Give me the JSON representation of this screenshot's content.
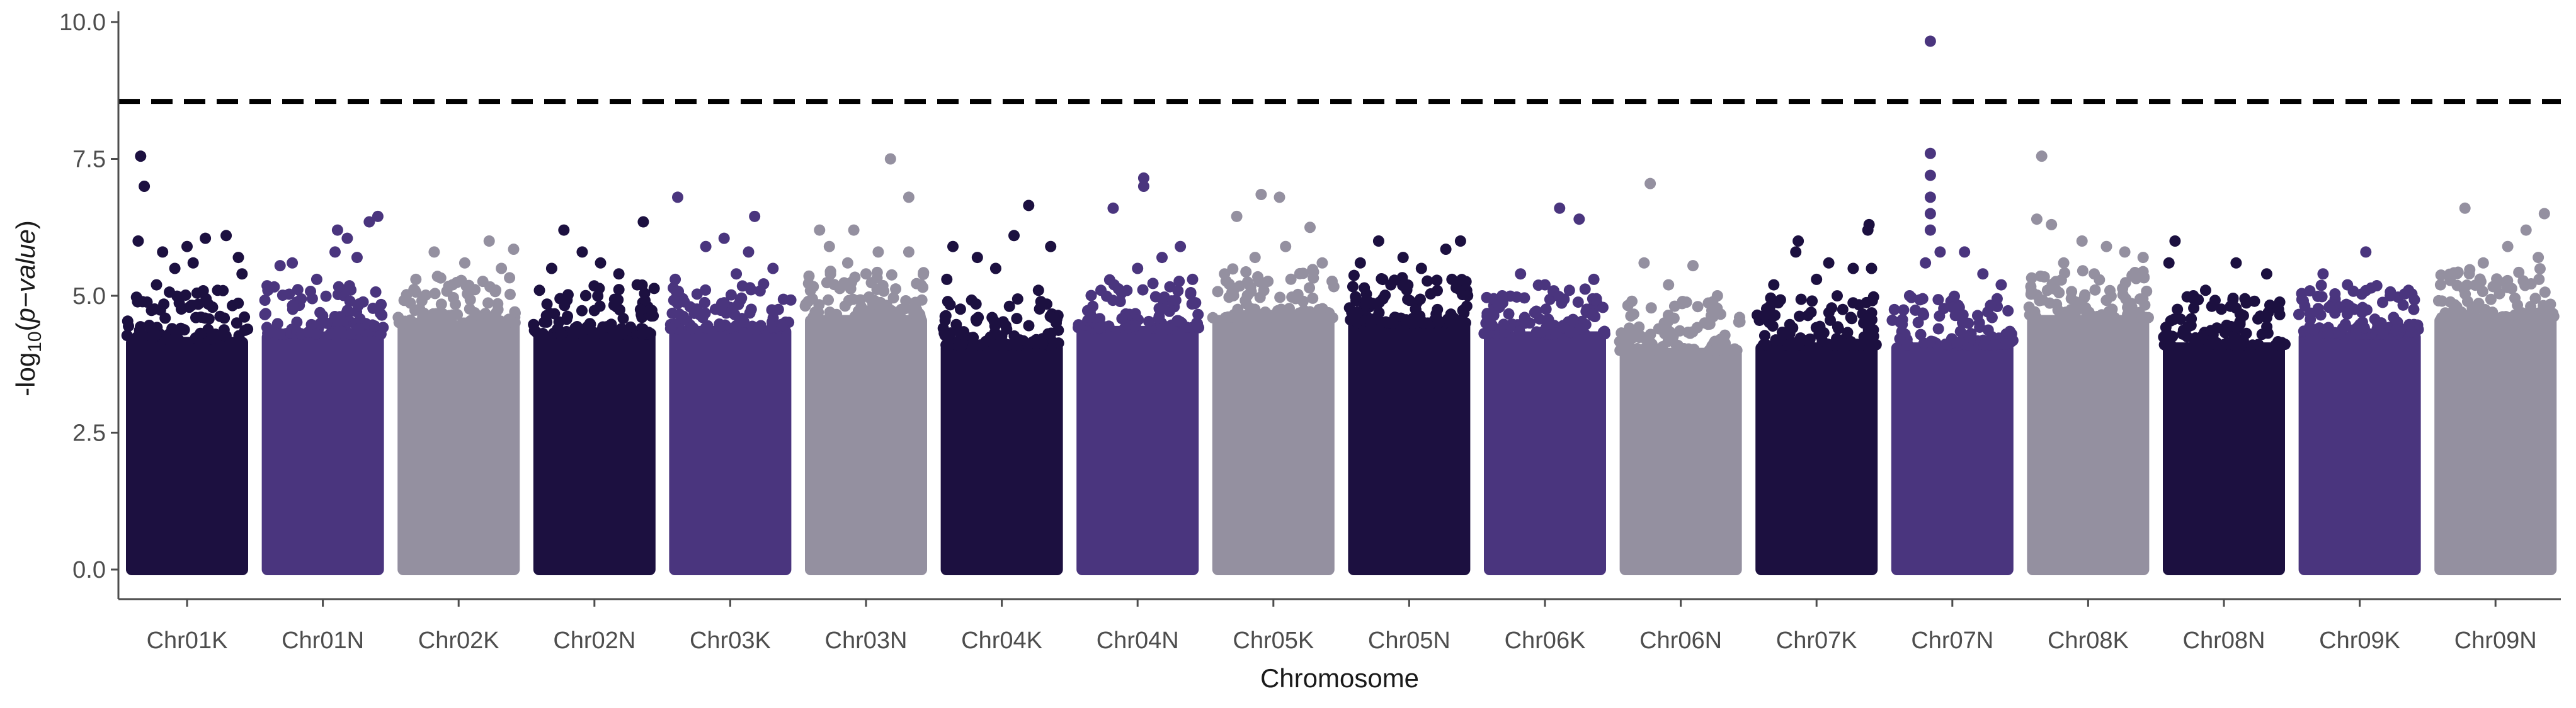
{
  "chart_data": {
    "type": "scatter",
    "subtype": "manhattan",
    "xlabel": "Chromosome",
    "ylabel": "-log10(p-value)",
    "ylabel_parts": {
      "prefix": "-log",
      "sub": "10",
      "open": "(",
      "italic": "p−value",
      "close": ")"
    },
    "ylim": [
      0,
      10
    ],
    "yticks": [
      "0.0",
      "2.5",
      "5.0",
      "7.5",
      "10.0"
    ],
    "ytick_values": [
      0,
      2.5,
      5.0,
      7.5,
      10.0
    ],
    "threshold": 8.55,
    "threshold_style": "dashed",
    "grid": false,
    "palette": [
      "#1c1040",
      "#4a357e",
      "#9490a0"
    ],
    "categories": [
      "Chr01K",
      "Chr01N",
      "Chr02K",
      "Chr02N",
      "Chr03K",
      "Chr03N",
      "Chr04K",
      "Chr04N",
      "Chr05K",
      "Chr05N",
      "Chr06K",
      "Chr06N",
      "Chr07K",
      "Chr07N",
      "Chr08K",
      "Chr08N",
      "Chr09K",
      "Chr09N"
    ],
    "series": [
      {
        "chromosome": "Chr01K",
        "color": "#1c1040",
        "band_top": 4.5,
        "top_points": [
          [
            0.12,
            7.55
          ],
          [
            0.15,
            7.0
          ],
          [
            0.1,
            6.0
          ],
          [
            0.3,
            5.8
          ],
          [
            0.5,
            5.9
          ],
          [
            0.65,
            6.05
          ],
          [
            0.82,
            6.1
          ],
          [
            0.55,
            5.6
          ],
          [
            0.4,
            5.5
          ],
          [
            0.92,
            5.7
          ],
          [
            0.25,
            5.2
          ],
          [
            0.75,
            5.1
          ],
          [
            0.95,
            5.4
          ]
        ]
      },
      {
        "chromosome": "Chr01N",
        "color": "#4a357e",
        "band_top": 4.6,
        "top_points": [
          [
            0.95,
            6.45
          ],
          [
            0.88,
            6.35
          ],
          [
            0.62,
            6.2
          ],
          [
            0.7,
            6.05
          ],
          [
            0.6,
            5.8
          ],
          [
            0.78,
            5.7
          ],
          [
            0.25,
            5.6
          ],
          [
            0.45,
            5.3
          ],
          [
            0.15,
            5.55
          ],
          [
            0.05,
            5.1
          ]
        ]
      },
      {
        "chromosome": "Chr02K",
        "color": "#9490a0",
        "band_top": 4.8,
        "top_points": [
          [
            0.75,
            6.0
          ],
          [
            0.95,
            5.85
          ],
          [
            0.3,
            5.8
          ],
          [
            0.55,
            5.6
          ],
          [
            0.85,
            5.5
          ],
          [
            0.15,
            5.3
          ],
          [
            0.45,
            5.2
          ]
        ]
      },
      {
        "chromosome": "Chr02N",
        "color": "#1c1040",
        "band_top": 4.6,
        "top_points": [
          [
            0.25,
            6.2
          ],
          [
            0.9,
            6.35
          ],
          [
            0.4,
            5.8
          ],
          [
            0.55,
            5.6
          ],
          [
            0.15,
            5.5
          ],
          [
            0.7,
            5.4
          ],
          [
            0.85,
            5.2
          ],
          [
            0.05,
            5.1
          ]
        ]
      },
      {
        "chromosome": "Chr03K",
        "color": "#4a357e",
        "band_top": 4.7,
        "top_points": [
          [
            0.07,
            6.8
          ],
          [
            0.7,
            6.45
          ],
          [
            0.45,
            6.05
          ],
          [
            0.65,
            5.8
          ],
          [
            0.3,
            5.9
          ],
          [
            0.85,
            5.5
          ],
          [
            0.05,
            5.3
          ],
          [
            0.55,
            5.4
          ]
        ]
      },
      {
        "chromosome": "Chr03N",
        "color": "#9490a0",
        "band_top": 4.9,
        "top_points": [
          [
            0.7,
            7.5
          ],
          [
            0.85,
            6.8
          ],
          [
            0.12,
            6.2
          ],
          [
            0.4,
            6.2
          ],
          [
            0.2,
            5.9
          ],
          [
            0.6,
            5.8
          ],
          [
            0.85,
            5.8
          ],
          [
            0.35,
            5.6
          ],
          [
            0.5,
            5.4
          ],
          [
            0.95,
            5.2
          ]
        ]
      },
      {
        "chromosome": "Chr04K",
        "color": "#1c1040",
        "band_top": 4.4,
        "top_points": [
          [
            0.72,
            6.65
          ],
          [
            0.9,
            5.9
          ],
          [
            0.6,
            6.1
          ],
          [
            0.1,
            5.9
          ],
          [
            0.3,
            5.7
          ],
          [
            0.45,
            5.5
          ],
          [
            0.05,
            5.3
          ],
          [
            0.8,
            5.1
          ]
        ]
      },
      {
        "chromosome": "Chr04N",
        "color": "#4a357e",
        "band_top": 4.7,
        "top_points": [
          [
            0.55,
            7.15
          ],
          [
            0.55,
            7.0
          ],
          [
            0.3,
            6.6
          ],
          [
            0.85,
            5.9
          ],
          [
            0.7,
            5.7
          ],
          [
            0.5,
            5.5
          ],
          [
            0.95,
            5.3
          ],
          [
            0.2,
            5.1
          ]
        ]
      },
      {
        "chromosome": "Chr05K",
        "color": "#9490a0",
        "band_top": 4.9,
        "top_points": [
          [
            0.4,
            6.85
          ],
          [
            0.55,
            6.8
          ],
          [
            0.2,
            6.45
          ],
          [
            0.8,
            6.25
          ],
          [
            0.6,
            5.9
          ],
          [
            0.35,
            5.7
          ],
          [
            0.9,
            5.6
          ],
          [
            0.1,
            5.4
          ]
        ]
      },
      {
        "chromosome": "Chr05N",
        "color": "#1c1040",
        "band_top": 4.8,
        "top_points": [
          [
            0.25,
            6.0
          ],
          [
            0.92,
            6.0
          ],
          [
            0.8,
            5.85
          ],
          [
            0.45,
            5.7
          ],
          [
            0.6,
            5.5
          ],
          [
            0.1,
            5.6
          ],
          [
            0.85,
            5.3
          ],
          [
            0.35,
            5.2
          ]
        ]
      },
      {
        "chromosome": "Chr06K",
        "color": "#4a357e",
        "band_top": 4.6,
        "top_points": [
          [
            0.62,
            6.6
          ],
          [
            0.78,
            6.4
          ],
          [
            0.3,
            5.4
          ],
          [
            0.5,
            5.2
          ],
          [
            0.9,
            5.3
          ],
          [
            0.15,
            5.0
          ],
          [
            0.7,
            5.1
          ]
        ]
      },
      {
        "chromosome": "Chr06N",
        "color": "#9490a0",
        "band_top": 4.3,
        "top_points": [
          [
            0.25,
            7.05
          ],
          [
            0.2,
            5.6
          ],
          [
            0.6,
            5.55
          ],
          [
            0.4,
            5.2
          ],
          [
            0.8,
            5.0
          ],
          [
            0.1,
            4.9
          ]
        ]
      },
      {
        "chromosome": "Chr07K",
        "color": "#1c1040",
        "band_top": 4.4,
        "top_points": [
          [
            0.93,
            6.3
          ],
          [
            0.92,
            6.2
          ],
          [
            0.35,
            6.0
          ],
          [
            0.33,
            5.8
          ],
          [
            0.6,
            5.6
          ],
          [
            0.8,
            5.5
          ],
          [
            0.95,
            5.5
          ],
          [
            0.15,
            5.2
          ],
          [
            0.5,
            5.3
          ]
        ]
      },
      {
        "chromosome": "Chr07N",
        "color": "#4a357e",
        "band_top": 4.4,
        "top_points": [
          [
            0.32,
            9.65
          ],
          [
            0.32,
            7.6
          ],
          [
            0.32,
            7.2
          ],
          [
            0.32,
            6.8
          ],
          [
            0.32,
            6.5
          ],
          [
            0.32,
            6.2
          ],
          [
            0.4,
            5.8
          ],
          [
            0.28,
            5.6
          ],
          [
            0.6,
            5.8
          ],
          [
            0.75,
            5.4
          ],
          [
            0.9,
            5.2
          ],
          [
            0.15,
            5.0
          ]
        ]
      },
      {
        "chromosome": "Chr08K",
        "color": "#9490a0",
        "band_top": 4.9,
        "top_points": [
          [
            0.12,
            7.55
          ],
          [
            0.08,
            6.4
          ],
          [
            0.2,
            6.3
          ],
          [
            0.45,
            6.0
          ],
          [
            0.65,
            5.9
          ],
          [
            0.8,
            5.8
          ],
          [
            0.3,
            5.6
          ],
          [
            0.95,
            5.7
          ],
          [
            0.55,
            5.4
          ]
        ]
      },
      {
        "chromosome": "Chr08N",
        "color": "#1c1040",
        "band_top": 4.4,
        "top_points": [
          [
            0.1,
            6.0
          ],
          [
            0.6,
            5.6
          ],
          [
            0.05,
            5.6
          ],
          [
            0.85,
            5.4
          ],
          [
            0.35,
            5.1
          ],
          [
            0.25,
            5.0
          ],
          [
            0.75,
            4.9
          ]
        ]
      },
      {
        "chromosome": "Chr09K",
        "color": "#4a357e",
        "band_top": 4.6,
        "top_points": [
          [
            0.55,
            5.8
          ],
          [
            0.2,
            5.4
          ],
          [
            0.4,
            5.2
          ],
          [
            0.75,
            5.0
          ],
          [
            0.9,
            5.1
          ]
        ]
      },
      {
        "chromosome": "Chr09N",
        "color": "#9490a0",
        "band_top": 4.9,
        "top_points": [
          [
            0.25,
            6.6
          ],
          [
            0.9,
            6.5
          ],
          [
            0.75,
            6.2
          ],
          [
            0.6,
            5.9
          ],
          [
            0.4,
            5.6
          ],
          [
            0.15,
            5.4
          ],
          [
            0.85,
            5.7
          ],
          [
            0.05,
            5.2
          ]
        ]
      }
    ]
  }
}
